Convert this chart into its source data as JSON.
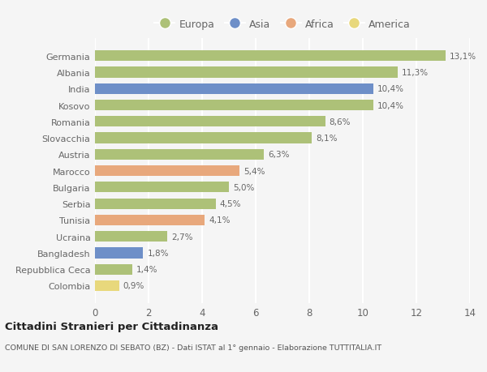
{
  "countries": [
    "Germania",
    "Albania",
    "India",
    "Kosovo",
    "Romania",
    "Slovacchia",
    "Austria",
    "Marocco",
    "Bulgaria",
    "Serbia",
    "Tunisia",
    "Ucraina",
    "Bangladesh",
    "Repubblica Ceca",
    "Colombia"
  ],
  "values": [
    13.1,
    11.3,
    10.4,
    10.4,
    8.6,
    8.1,
    6.3,
    5.4,
    5.0,
    4.5,
    4.1,
    2.7,
    1.8,
    1.4,
    0.9
  ],
  "labels": [
    "13,1%",
    "11,3%",
    "10,4%",
    "10,4%",
    "8,6%",
    "8,1%",
    "6,3%",
    "5,4%",
    "5,0%",
    "4,5%",
    "4,1%",
    "2,7%",
    "1,8%",
    "1,4%",
    "0,9%"
  ],
  "colors": [
    "#adc178",
    "#adc178",
    "#6e8fc8",
    "#adc178",
    "#adc178",
    "#adc178",
    "#adc178",
    "#e8a87c",
    "#adc178",
    "#adc178",
    "#e8a87c",
    "#adc178",
    "#6e8fc8",
    "#adc178",
    "#e8d87c"
  ],
  "legend": [
    {
      "label": "Europa",
      "color": "#adc178"
    },
    {
      "label": "Asia",
      "color": "#6e8fc8"
    },
    {
      "label": "Africa",
      "color": "#e8a87c"
    },
    {
      "label": "America",
      "color": "#e8d87c"
    }
  ],
  "xlim": [
    0,
    14
  ],
  "xticks": [
    0,
    2,
    4,
    6,
    8,
    10,
    12,
    14
  ],
  "title": "Cittadini Stranieri per Cittadinanza",
  "subtitle": "COMUNE DI SAN LORENZO DI SEBATO (BZ) - Dati ISTAT al 1° gennaio - Elaborazione TUTTITALIA.IT",
  "background_color": "#f5f5f5",
  "bar_height": 0.65,
  "grid_color": "#ffffff",
  "text_color": "#666666",
  "label_color": "#666666"
}
